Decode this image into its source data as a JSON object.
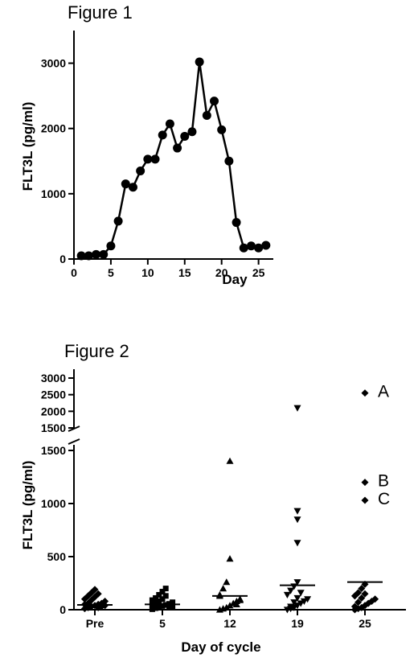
{
  "chart_data": [
    {
      "type": "line",
      "title": "Figure 1",
      "xlabel": "Day",
      "ylabel": "FLT3L (pg/ml)",
      "xlim": [
        0,
        27
      ],
      "ylim": [
        0,
        3500
      ],
      "xticks": [
        0,
        5,
        10,
        15,
        20,
        25
      ],
      "yticks": [
        0,
        1000,
        2000,
        3000
      ],
      "grid": false,
      "x": [
        1,
        2,
        3,
        4,
        5,
        6,
        7,
        8,
        9,
        10,
        11,
        12,
        13,
        14,
        15,
        16,
        17,
        18,
        19,
        20,
        21,
        22,
        23,
        24,
        25,
        26
      ],
      "y": [
        50,
        50,
        70,
        70,
        200,
        580,
        1150,
        1100,
        1350,
        1530,
        1530,
        1900,
        2070,
        1700,
        1880,
        1950,
        3020,
        2200,
        2420,
        1980,
        1500,
        560,
        170,
        200,
        170,
        210
      ]
    },
    {
      "type": "scatter",
      "title": "Figure 2",
      "xlabel": "Day of cycle",
      "ylabel": "FLT3L (pg/ml)",
      "categories": [
        "Pre",
        "5",
        "12",
        "19",
        "25"
      ],
      "ylim_lower": [
        0,
        1500
      ],
      "ylim_upper": [
        1500,
        3000
      ],
      "yticks_lower": [
        0,
        500,
        1000,
        1500
      ],
      "yticks_upper": [
        1500,
        2000,
        2500,
        3000
      ],
      "grid": false,
      "series": [
        {
          "marker": "diamond",
          "values": [
            10,
            20,
            30,
            40,
            50,
            60,
            80,
            100,
            130,
            160,
            190,
            20,
            30,
            40,
            50,
            60,
            90,
            120,
            150
          ],
          "mean": 45
        },
        {
          "marker": "square",
          "values": [
            5,
            15,
            25,
            35,
            45,
            55,
            70,
            90,
            110,
            140,
            170,
            200,
            20,
            30,
            40,
            60,
            80,
            100,
            130
          ],
          "mean": 50
        },
        {
          "marker": "triangle-up",
          "values": [
            0,
            10,
            20,
            40,
            60,
            80,
            100,
            140,
            200,
            260,
            480,
            1400,
            50,
            90,
            130
          ],
          "mean": 130
        },
        {
          "marker": "triangle-down",
          "values": [
            0,
            10,
            20,
            40,
            60,
            80,
            100,
            140,
            180,
            220,
            260,
            630,
            850,
            930,
            2100,
            30,
            70,
            110,
            160
          ],
          "mean": 230
        },
        {
          "marker": "diamond",
          "values": [
            0,
            10,
            20,
            40,
            60,
            80,
            100,
            130,
            160,
            200,
            240,
            1030,
            1200,
            2550,
            30,
            70,
            110,
            150
          ],
          "mean": 260
        }
      ],
      "annotations": [
        {
          "text": "A",
          "category": "25",
          "y": 2550
        },
        {
          "text": "B",
          "category": "25",
          "y": 1200
        },
        {
          "text": "C",
          "category": "25",
          "y": 1030
        }
      ]
    }
  ]
}
